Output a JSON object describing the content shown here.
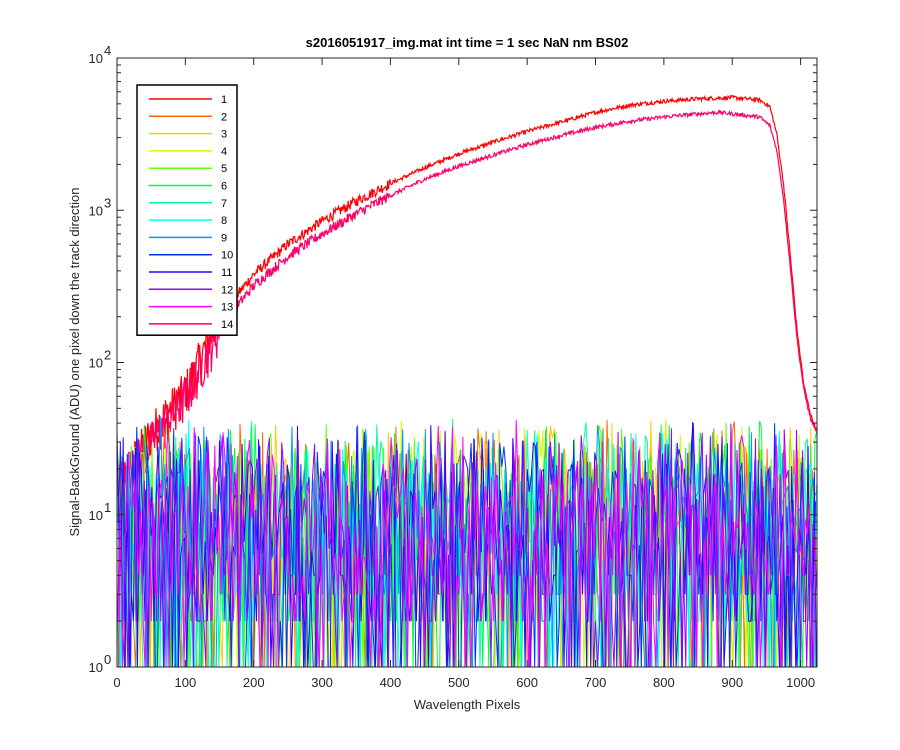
{
  "chart_data": {
    "type": "line",
    "title": "s2016051917_img.mat int time = 1 sec  NaN nm BS02",
    "xlabel": "Wavelength Pixels",
    "ylabel": "Signal-BackGround (ADU) one pixel down the track direction",
    "xlim": [
      0,
      1024
    ],
    "ylim": [
      1,
      10000
    ],
    "yscale": "log",
    "xticks": [
      "0",
      "100",
      "200",
      "300",
      "400",
      "500",
      "600",
      "700",
      "800",
      "900",
      "1000"
    ],
    "yticks": [
      {
        "base": "10",
        "exp": "0"
      },
      {
        "base": "10",
        "exp": "1"
      },
      {
        "base": "10",
        "exp": "2"
      },
      {
        "base": "10",
        "exp": "3"
      },
      {
        "base": "10",
        "exp": "4"
      }
    ],
    "grid": false,
    "legend_location": "top-left",
    "series": [
      {
        "name": "1",
        "color": "#ff0000",
        "profile": "signal",
        "points": [
          [
            0,
            15
          ],
          [
            50,
            35
          ],
          [
            100,
            65
          ],
          [
            150,
            200
          ],
          [
            200,
            380
          ],
          [
            250,
            600
          ],
          [
            300,
            850
          ],
          [
            350,
            1150
          ],
          [
            400,
            1500
          ],
          [
            450,
            1900
          ],
          [
            500,
            2350
          ],
          [
            550,
            2800
          ],
          [
            600,
            3300
          ],
          [
            650,
            3800
          ],
          [
            700,
            4400
          ],
          [
            750,
            4900
          ],
          [
            800,
            5200
          ],
          [
            850,
            5400
          ],
          [
            900,
            5500
          ],
          [
            940,
            5300
          ],
          [
            955,
            4800
          ],
          [
            965,
            3200
          ],
          [
            975,
            1500
          ],
          [
            985,
            500
          ],
          [
            995,
            160
          ],
          [
            1005,
            70
          ],
          [
            1015,
            45
          ],
          [
            1024,
            35
          ]
        ]
      },
      {
        "name": "2",
        "color": "#ff6600",
        "profile": "noise"
      },
      {
        "name": "3",
        "color": "#ffcc00",
        "profile": "noise"
      },
      {
        "name": "4",
        "color": "#ccff00",
        "profile": "noise"
      },
      {
        "name": "5",
        "color": "#66ff00",
        "profile": "noise"
      },
      {
        "name": "6",
        "color": "#00ff33",
        "profile": "noise"
      },
      {
        "name": "7",
        "color": "#00ff99",
        "profile": "noise"
      },
      {
        "name": "8",
        "color": "#00ffff",
        "profile": "noise"
      },
      {
        "name": "9",
        "color": "#0099ff",
        "profile": "noise"
      },
      {
        "name": "10",
        "color": "#0033ff",
        "profile": "noise"
      },
      {
        "name": "11",
        "color": "#3300ff",
        "profile": "noise"
      },
      {
        "name": "12",
        "color": "#9900ff",
        "profile": "noise"
      },
      {
        "name": "13",
        "color": "#ff00ff",
        "profile": "noise"
      },
      {
        "name": "14",
        "color": "#ff0066",
        "profile": "signal",
        "points": [
          [
            0,
            15
          ],
          [
            50,
            30
          ],
          [
            100,
            60
          ],
          [
            150,
            170
          ],
          [
            200,
            320
          ],
          [
            250,
            500
          ],
          [
            300,
            700
          ],
          [
            350,
            950
          ],
          [
            400,
            1250
          ],
          [
            450,
            1600
          ],
          [
            500,
            1950
          ],
          [
            550,
            2300
          ],
          [
            600,
            2700
          ],
          [
            650,
            3100
          ],
          [
            700,
            3500
          ],
          [
            750,
            3850
          ],
          [
            800,
            4100
          ],
          [
            850,
            4300
          ],
          [
            880,
            4400
          ],
          [
            940,
            4100
          ],
          [
            955,
            3600
          ],
          [
            965,
            2500
          ],
          [
            975,
            1200
          ],
          [
            985,
            420
          ],
          [
            995,
            140
          ],
          [
            1005,
            65
          ],
          [
            1015,
            42
          ],
          [
            1024,
            35
          ]
        ]
      }
    ]
  }
}
